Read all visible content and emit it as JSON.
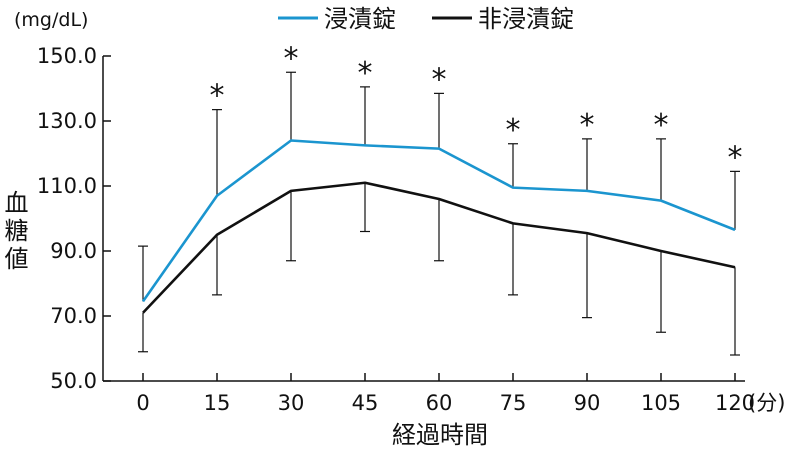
{
  "chart_data": {
    "type": "line",
    "x": [
      0,
      15,
      30,
      45,
      60,
      75,
      90,
      105,
      120
    ],
    "x_unit_label": "(分)",
    "xlabel": "経過時間",
    "ylabel": "血糖値",
    "y_unit_label": "(mg/dL)",
    "ylim": [
      50,
      150
    ],
    "yticks": [
      "50.0",
      "70.0",
      "90.0",
      "110.0",
      "130.0",
      "150.0"
    ],
    "ytick_values": [
      50,
      70,
      90,
      110,
      130,
      150
    ],
    "grid": false,
    "legend_position": "top",
    "series": [
      {
        "name": "浸漬錠",
        "color": "#1b95cf",
        "values": [
          74.5,
          107,
          124,
          122.5,
          121.5,
          109.5,
          108.5,
          105.5,
          96.5
        ],
        "error_upper": [
          91.5,
          133.5,
          145,
          140.5,
          138.5,
          123,
          124.5,
          124.5,
          114.5
        ]
      },
      {
        "name": "非浸漬錠",
        "color": "#111111",
        "values": [
          71,
          95,
          108.5,
          111,
          106,
          98.5,
          95.5,
          90,
          85
        ],
        "error_lower": [
          59,
          76.5,
          87,
          96,
          87,
          76.5,
          69.5,
          65,
          58
        ]
      }
    ],
    "significance_marker": "*",
    "significant_x": [
      15,
      30,
      45,
      60,
      75,
      90,
      105,
      120
    ]
  }
}
